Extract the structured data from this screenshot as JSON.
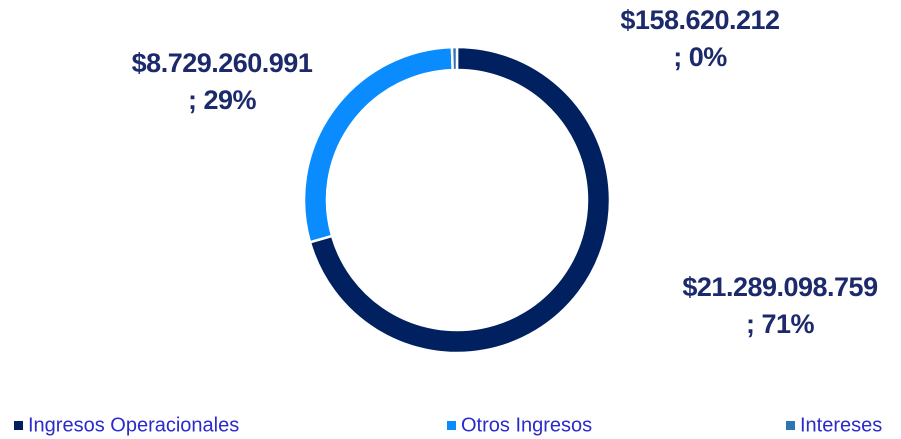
{
  "chart_data": {
    "type": "donut",
    "categories": [
      "Ingresos Operacionales",
      "Otros Ingresos",
      "Intereses"
    ],
    "values": [
      21289098759,
      8729260991,
      158620212
    ],
    "value_labels": [
      "$21.289.098.759 ; 71%",
      "$8.729.260.991 ; 29%",
      "$158.620.212 ; 0%"
    ],
    "colors": [
      "#002060",
      "#0a8cff",
      "#2e75b6"
    ],
    "legend": "bottom"
  }
}
